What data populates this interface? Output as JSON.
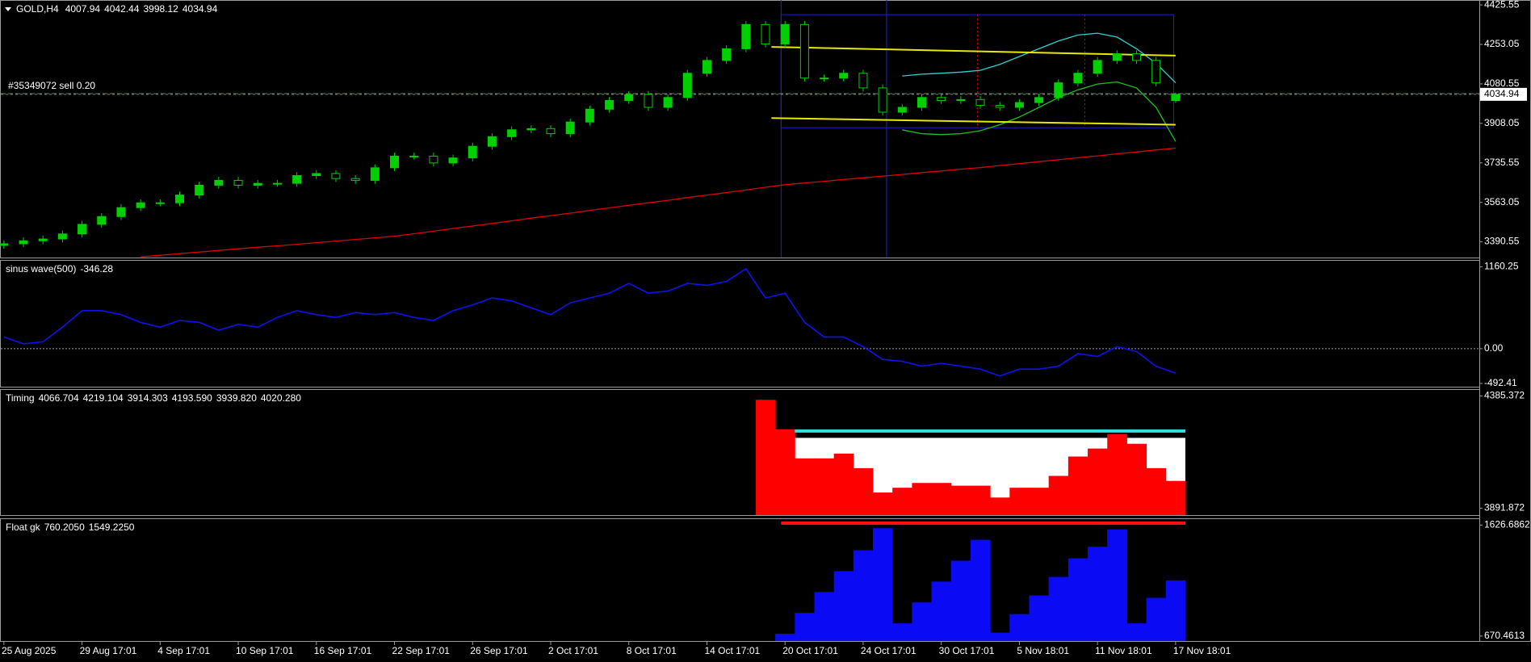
{
  "chart_data": [
    {
      "type": "candlestick",
      "symbol": "GOLD,H4",
      "color": "#00d000",
      "categories": [
        "25 Aug 2025",
        null,
        null,
        null,
        "29 Aug 17:01",
        null,
        null,
        null,
        "4 Sep 17:01",
        null,
        null,
        null,
        "10 Sep 17:01",
        null,
        null,
        null,
        "16 Sep 17:01",
        null,
        null,
        null,
        "22 Sep 17:01",
        null,
        null,
        null,
        "26 Sep 17:01",
        null,
        null,
        null,
        "2 Oct 17:01",
        null,
        null,
        null,
        "8 Oct 17:01",
        null,
        null,
        null,
        "14 Oct 17:01",
        null,
        null,
        null,
        "20 Oct 17:01",
        null,
        null,
        null,
        "24 Oct 17:01",
        null,
        null,
        null,
        "30 Oct 17:01",
        null,
        null,
        null,
        "5 Nov 18:01",
        null,
        null,
        null,
        "11 Nov 18:01",
        null,
        null,
        null,
        "17 Nov 18:01"
      ],
      "open": [
        3375,
        3382,
        3395,
        3403,
        3425,
        3467,
        3501,
        3540,
        3561,
        3561,
        3595,
        3638,
        3659,
        3638,
        3646,
        3646,
        3680,
        3689,
        3667,
        3659,
        3714,
        3765,
        3765,
        3735,
        3757,
        3808,
        3850,
        3880,
        3885,
        3863,
        3914,
        3970,
        4008,
        4034,
        3978,
        4021,
        4127,
        4183,
        4234,
        4340,
        4255,
        4340,
        4106,
        4106,
        4127,
        4063,
        3957,
        3978,
        4021,
        4008,
        4012,
        3987,
        3978,
        3999,
        4021,
        4085,
        4127,
        4183,
        4212,
        4183,
        4007.94
      ],
      "high": [
        3397,
        3410,
        3418,
        3440,
        3482,
        3516,
        3555,
        3576,
        3576,
        3610,
        3653,
        3674,
        3674,
        3661,
        3661,
        3695,
        3704,
        3704,
        3682,
        3729,
        3780,
        3780,
        3780,
        3772,
        3823,
        3865,
        3895,
        3900,
        3900,
        3929,
        3985,
        4023,
        4049,
        4049,
        4036,
        4142,
        4198,
        4249,
        4355,
        4355,
        4355,
        4355,
        4121,
        4142,
        4142,
        4078,
        3993,
        4036,
        4036,
        4027,
        4027,
        4002,
        4014,
        4036,
        4100,
        4142,
        4198,
        4227,
        4227,
        4198,
        4042.44
      ],
      "low": [
        3360,
        3367,
        3380,
        3388,
        3410,
        3452,
        3486,
        3525,
        3546,
        3546,
        3580,
        3623,
        3623,
        3623,
        3631,
        3631,
        3665,
        3652,
        3644,
        3644,
        3699,
        3750,
        3720,
        3720,
        3742,
        3793,
        3835,
        3865,
        3848,
        3848,
        3899,
        3955,
        3993,
        3963,
        3963,
        4006,
        4112,
        4168,
        4219,
        4240,
        4240,
        4091,
        4091,
        4091,
        4048,
        3942,
        3942,
        3963,
        3993,
        3993,
        3972,
        3963,
        3963,
        3984,
        4006,
        4070,
        4112,
        4168,
        4168,
        4070,
        3998.12
      ],
      "close": [
        3382,
        3395,
        3403,
        3425,
        3467,
        3501,
        3540,
        3561,
        3561,
        3595,
        3638,
        3659,
        3638,
        3646,
        3646,
        3680,
        3689,
        3667,
        3659,
        3714,
        3765,
        3765,
        3735,
        3757,
        3808,
        3850,
        3880,
        3885,
        3863,
        3914,
        3970,
        4008,
        4034,
        3978,
        4021,
        4127,
        4183,
        4234,
        4340,
        4255,
        4340,
        4106,
        4106,
        4127,
        4063,
        3957,
        3978,
        4021,
        4008,
        4012,
        3987,
        3978,
        3999,
        4021,
        4085,
        4127,
        4183,
        4212,
        4183,
        4085,
        4034.94
      ],
      "ma": {
        "color": "#e00000",
        "values": [
          null,
          null,
          null,
          null,
          null,
          null,
          null,
          3325,
          3332,
          3339,
          3346,
          3353,
          3360,
          3367,
          3373,
          3380,
          3387,
          3394,
          3401,
          3408,
          3415,
          3426,
          3437,
          3449,
          3460,
          3471,
          3482,
          3494,
          3505,
          3516,
          3528,
          3539,
          3550,
          3561,
          3572,
          3584,
          3595,
          3606,
          3617,
          3629,
          3640,
          3648,
          3655,
          3663,
          3670,
          3678,
          3685,
          3693,
          3700,
          3708,
          3715,
          3724,
          3732,
          3741,
          3749,
          3758,
          3766,
          3775,
          3783,
          3792,
          3800
        ]
      },
      "trend_lines": [
        {
          "x": [
            39.3,
            60
          ],
          "values": [
            4242,
            4204
          ],
          "color": "#e8e800"
        },
        {
          "x": [
            39.3,
            60
          ],
          "values": [
            3931,
            3902
          ],
          "color": "#e8e800"
        }
      ],
      "bands": [
        {
          "color": "#30d0d0",
          "x": [
            46,
            47,
            48,
            49,
            50,
            51,
            52,
            53,
            54,
            55,
            56,
            57,
            58,
            59,
            60
          ],
          "values": [
            4115,
            4123,
            4127,
            4132,
            4140,
            4166,
            4200,
            4234,
            4268,
            4294,
            4302,
            4285,
            4234,
            4170,
            4085
          ]
        },
        {
          "color": "#20c020",
          "x": [
            46,
            47,
            48,
            49,
            50,
            51,
            52,
            53,
            54,
            55,
            56,
            57,
            58,
            59,
            60
          ],
          "values": [
            3880,
            3863,
            3859,
            3863,
            3876,
            3902,
            3936,
            3978,
            4021,
            4055,
            4080,
            4089,
            4063,
            3978,
            3829
          ]
        }
      ],
      "rectangle": {
        "x": [
          39.8,
          59.9
        ],
        "values": [
          4383,
          3889
        ],
        "color": "#2020d0"
      },
      "vlines": [
        {
          "x": 39.8,
          "color": "#2020d0"
        },
        {
          "x": 45.2,
          "color": "#2020d0"
        }
      ],
      "dotted_vlines": [
        {
          "x": 49.85,
          "color": "#e00000"
        },
        {
          "x": 55.35,
          "color": "#e00000"
        }
      ],
      "order": {
        "label": "#35349072 sell 0.20",
        "price": 4038,
        "color": "#5a8a5a"
      },
      "ylim": [
        3322,
        4447
      ],
      "yticks": [
        3390.55,
        3563.05,
        3735.55,
        3908.05,
        4080.55,
        4253.05,
        4425.55
      ]
    },
    {
      "type": "line",
      "title": "sinus wave(500)",
      "color": "#1010f0",
      "zero_line": true,
      "values": [
        166,
        69,
        97,
        304,
        539,
        539,
        483,
        373,
        304,
        400,
        373,
        262,
        345,
        304,
        442,
        539,
        483,
        442,
        511,
        483,
        511,
        442,
        400,
        539,
        621,
        718,
        677,
        580,
        483,
        649,
        718,
        787,
        925,
        787,
        815,
        925,
        898,
        953,
        1133,
        718,
        787,
        373,
        166,
        166,
        28,
        -152,
        -180,
        -249,
        -207,
        -249,
        -290,
        -387,
        -290,
        -290,
        -249,
        -69,
        -110,
        28,
        -41,
        -249,
        -346.28
      ],
      "ylim": [
        -539,
        1257
      ],
      "yticks": [
        1160.25,
        {
          "value": 0,
          "label": "0.00"
        },
        -492.41
      ]
    },
    {
      "type": "bar",
      "title": "Timing",
      "color": "#ff0000",
      "readings": [
        4066.704,
        4219.104,
        3914.303,
        {
          "value": 4193.59,
          "label": "4193.590"
        },
        {
          "value": 3939.82,
          "label": "3939.820"
        },
        {
          "value": 4020.28,
          "label": "4020.280"
        }
      ],
      "x": [
        39,
        40,
        41,
        42,
        43,
        44,
        45,
        46,
        47,
        48,
        49,
        50,
        51,
        52,
        53,
        54,
        55,
        56,
        57,
        58,
        59,
        60
      ],
      "values": [
        4368,
        4239,
        4111,
        4111,
        4132,
        4068,
        3961,
        3982,
        4003,
        4003,
        3991,
        3991,
        3939,
        3982,
        3982,
        4034,
        4119,
        4154,
        4218,
        4175,
        4068,
        4012
      ],
      "levels": [
        {
          "value": 4231,
          "x": [
            40.5,
            60
          ],
          "color": "#30e0e0"
        }
      ],
      "band": {
        "top": 4201,
        "x": [
          40.5,
          60
        ],
        "color": "#ffffff"
      },
      "ylim": [
        3862,
        4415
      ],
      "yticks": [
        4385.372,
        3891.872
      ]
    },
    {
      "type": "bar",
      "title": "Float gk",
      "color": "#0a0af5",
      "readings": [
        {
          "value": 760.205,
          "label": "760.2050"
        },
        {
          "value": 1549.225,
          "label": "1549.2250"
        }
      ],
      "x": [
        40,
        41,
        42,
        43,
        44,
        45,
        46,
        47,
        48,
        49,
        50,
        51,
        52,
        53,
        54,
        55,
        56,
        57,
        58,
        59,
        60
      ],
      "values": [
        690,
        870,
        1050,
        1230,
        1410,
        1600,
        780,
        960,
        1140,
        1320,
        1500,
        700,
        860,
        1020,
        1180,
        1340,
        1440,
        1590,
        780,
        1000,
        1150
      ],
      "levels": [
        {
          "value": 1643,
          "x": [
            39.8,
            60
          ],
          "color": "#ff1010"
        }
      ],
      "ylim": [
        628,
        1685
      ],
      "yticks": [
        1626.6862,
        670.4613
      ]
    }
  ]
}
